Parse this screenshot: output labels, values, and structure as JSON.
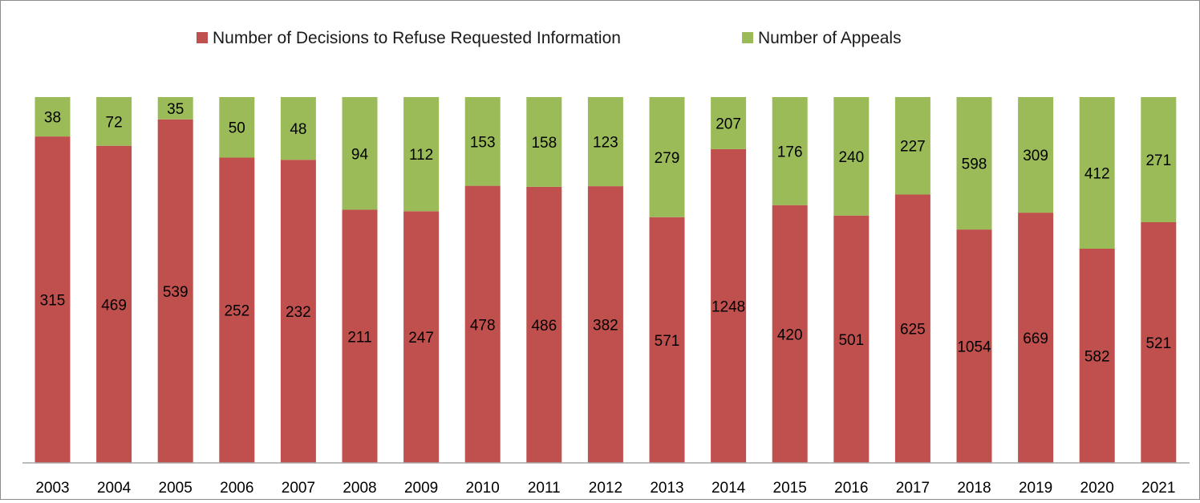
{
  "chart_data": {
    "type": "bar",
    "stacked": true,
    "normalized": true,
    "title": "",
    "xlabel": "",
    "ylabel": "",
    "categories": [
      "2003",
      "2004",
      "2005",
      "2006",
      "2007",
      "2008",
      "2009",
      "2010",
      "2011",
      "2012",
      "2013",
      "2014",
      "2015",
      "2016",
      "2017",
      "2018",
      "2019",
      "2020",
      "2021"
    ],
    "series": [
      {
        "name": "Number of Decisions to Refuse Requested Information",
        "color": "#c0504d",
        "values": [
          315,
          469,
          539,
          252,
          232,
          211,
          247,
          478,
          486,
          382,
          571,
          1248,
          420,
          501,
          625,
          1054,
          669,
          582,
          521
        ]
      },
      {
        "name": "Number of Appeals",
        "color": "#9bbb59",
        "values": [
          38,
          72,
          35,
          50,
          48,
          94,
          112,
          153,
          158,
          123,
          279,
          207,
          176,
          240,
          227,
          598,
          309,
          412,
          271
        ]
      }
    ],
    "grid": false,
    "legend_position": "top",
    "axis_color": "#a6a6a6"
  }
}
